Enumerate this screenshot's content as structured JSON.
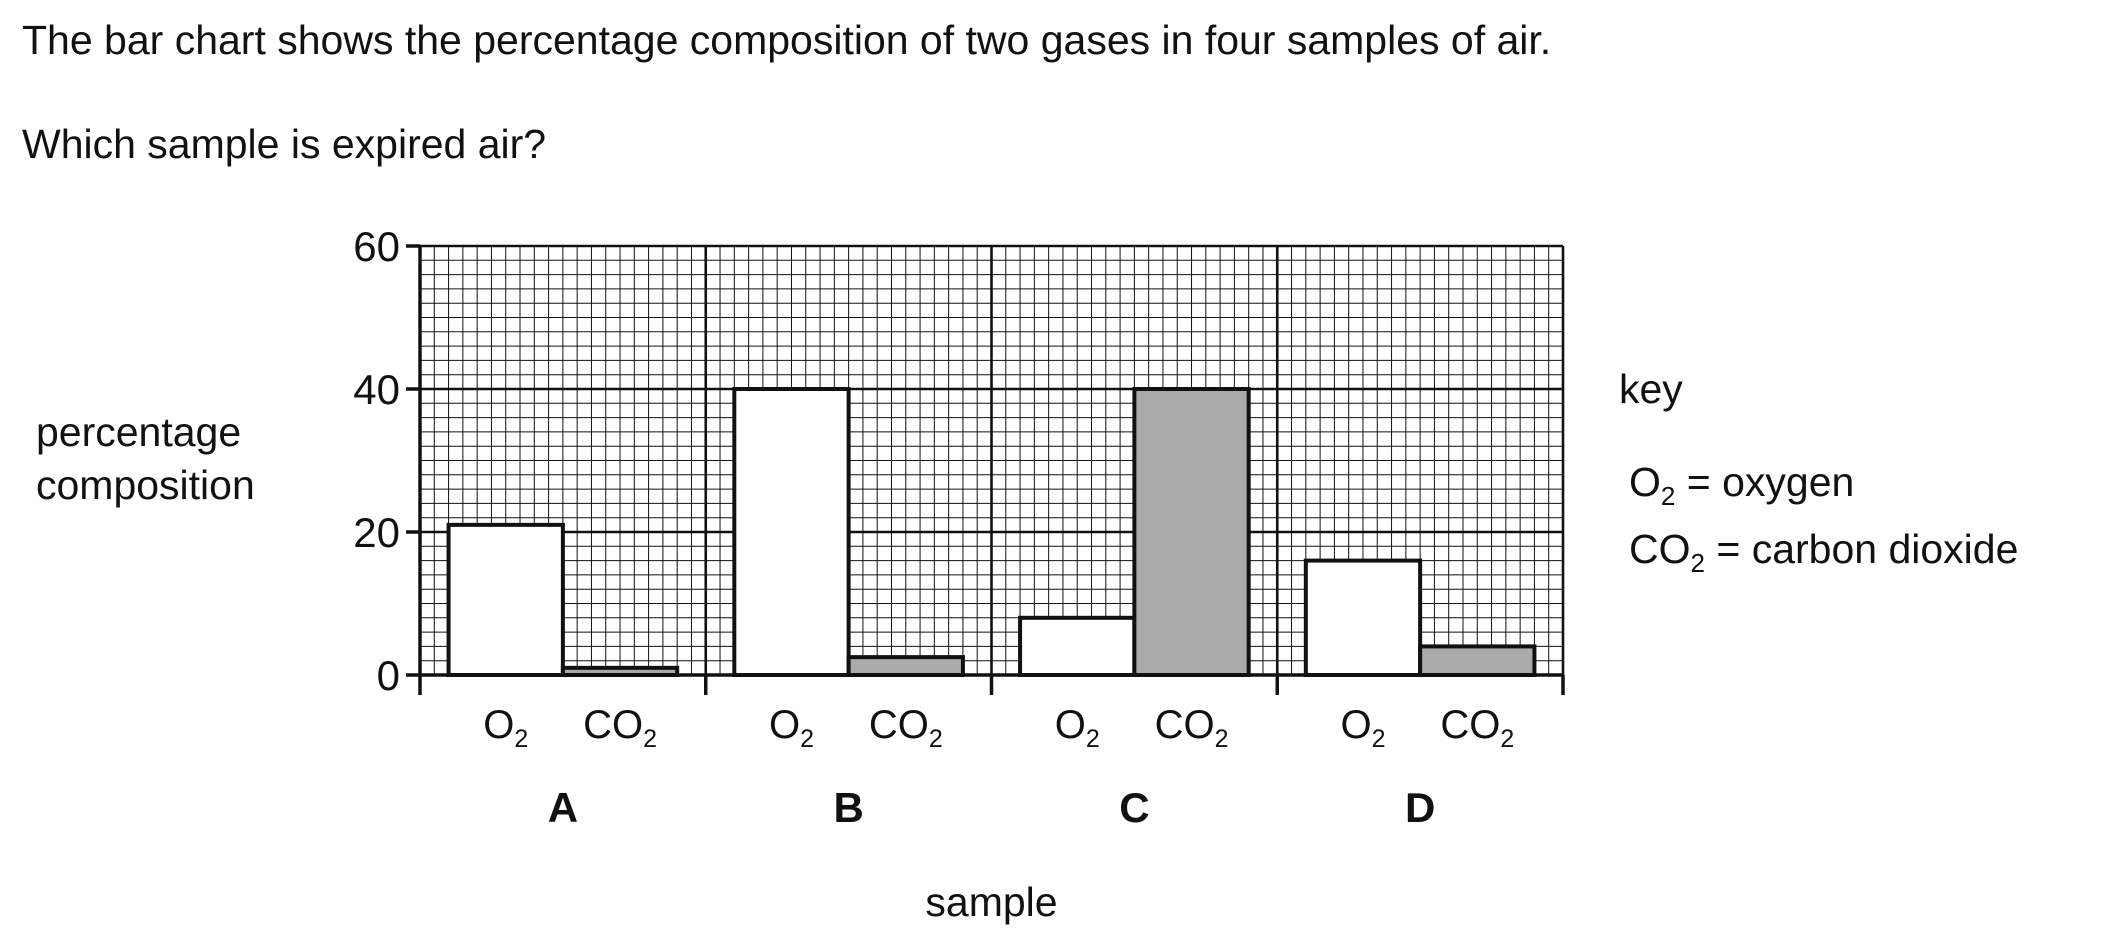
{
  "question": {
    "line1": "The bar chart shows the percentage composition of two gases in four samples of air.",
    "line2": "Which sample is expired air?"
  },
  "chart_data": {
    "type": "bar",
    "categories": [
      "A",
      "B",
      "C",
      "D"
    ],
    "bar_labels": [
      "O₂",
      "CO₂"
    ],
    "series": [
      {
        "values": [
          21,
          40,
          8,
          16
        ],
        "fill": "#ffffff"
      },
      {
        "values": [
          1,
          2.5,
          40,
          4
        ],
        "fill": "#aaaaaa"
      }
    ],
    "ylabel": [
      "percentage",
      "composition"
    ],
    "xlabel": "sample",
    "ylim": [
      0,
      60
    ],
    "yticks": [
      0,
      20,
      40,
      60
    ],
    "grid": true,
    "key": {
      "title": "key",
      "entries": [
        "O₂ = oxygen",
        "CO₂ = carbon dioxide"
      ]
    }
  }
}
